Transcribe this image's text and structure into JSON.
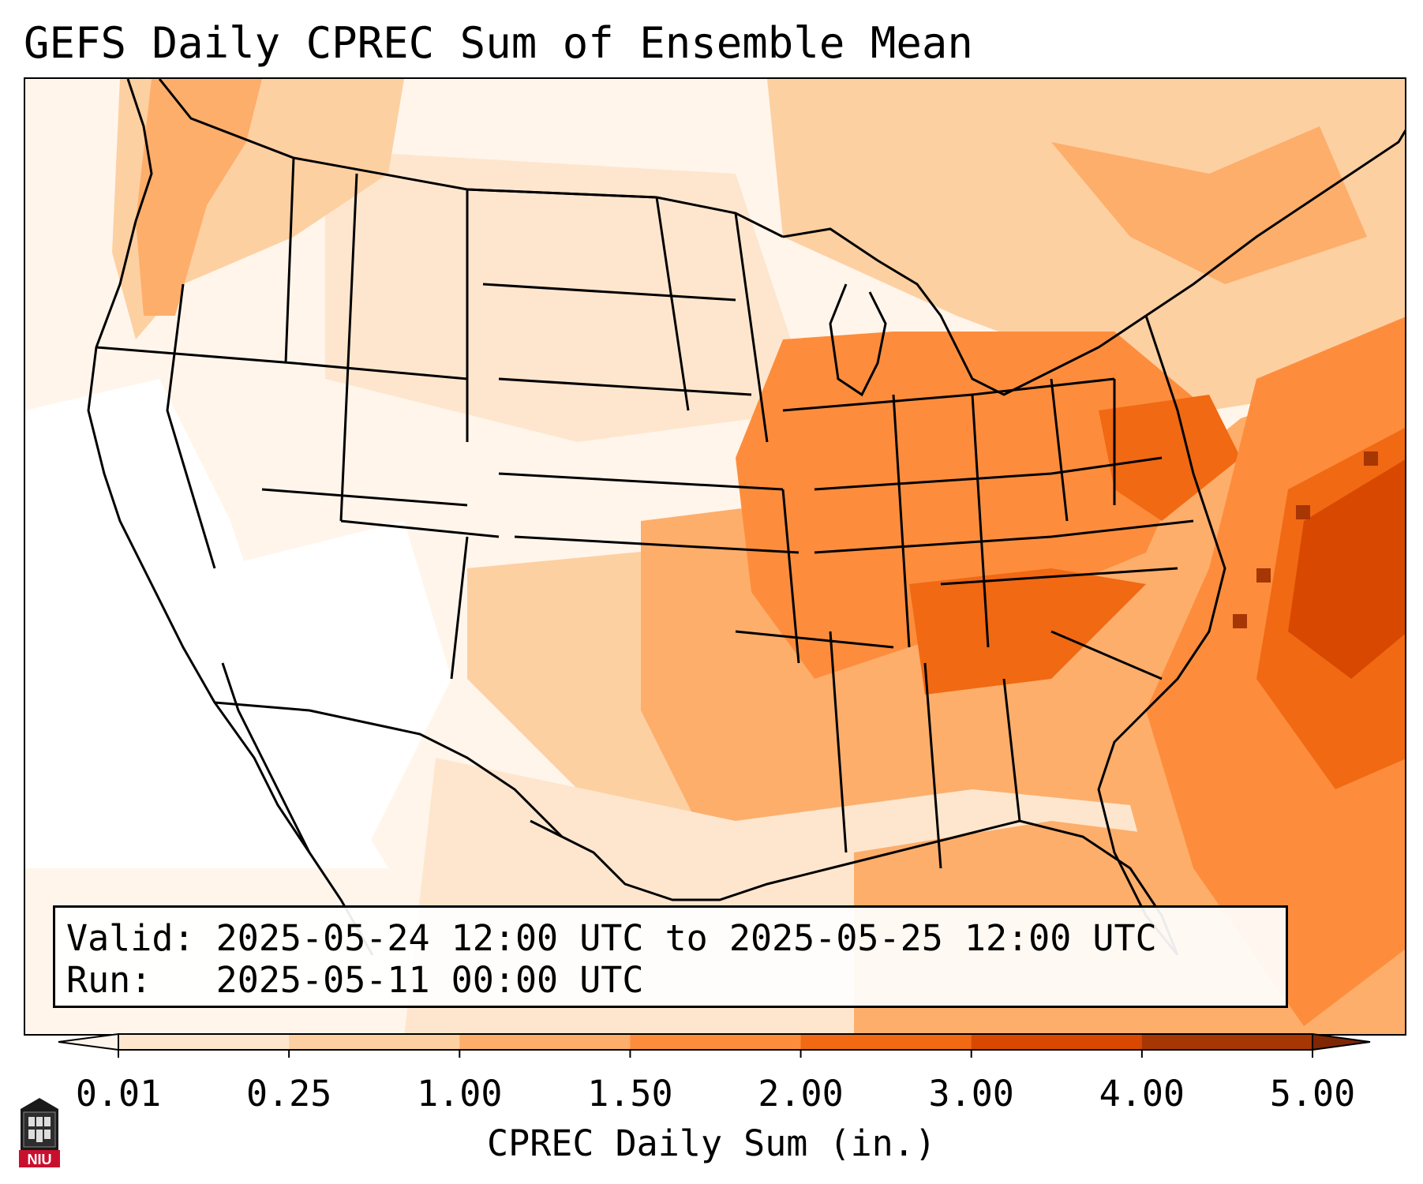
{
  "title": "GEFS Daily CPREC Sum of Ensemble Mean",
  "info": {
    "valid": "Valid: 2025-05-24 12:00 UTC to 2025-05-25 12:00 UTC",
    "run": "Run:   2025-05-11 00:00 UTC"
  },
  "colorbar": {
    "label": "CPREC Daily Sum (in.)",
    "ticks": [
      "0.01",
      "0.25",
      "1.00",
      "1.50",
      "2.00",
      "3.00",
      "4.00",
      "5.00"
    ],
    "colors": [
      "#fff5eb",
      "#fee6ce",
      "#fdd0a2",
      "#fdae6b",
      "#fd8d3c",
      "#f16913",
      "#d94801",
      "#a63603",
      "#7f2704"
    ],
    "extend": "both"
  },
  "logo": {
    "text": "NIU",
    "icon": "university-tower-icon"
  },
  "map": {
    "region": "CONUS",
    "colors": {
      "none": "#ffffff",
      "trace": "#fff5eb",
      "light": "#fee6ce",
      "moderate": "#fdd0a2",
      "heavy": "#fdae6b",
      "very_heavy": "#fd8d3c",
      "extreme": "#f16913",
      "max": "#d94801",
      "peak": "#a63603",
      "border": "#000000"
    }
  }
}
